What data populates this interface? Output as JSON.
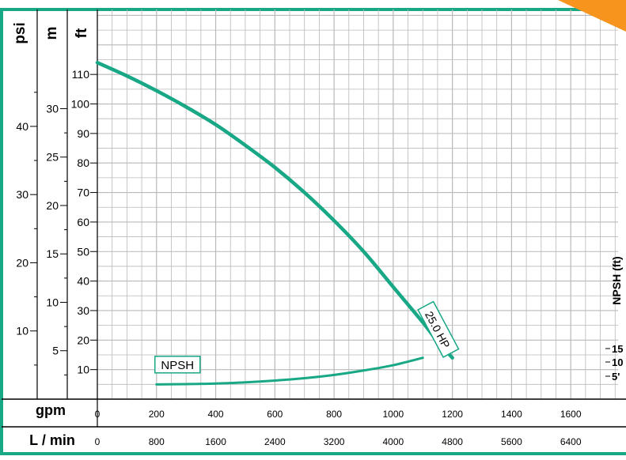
{
  "colors": {
    "frame": "#18a886",
    "grid": "#b9b9b9",
    "curve": "#18a886",
    "badge": "#f7941d",
    "text": "#000000"
  },
  "chart_data": {
    "type": "line",
    "x_units": "gpm",
    "xlim": [
      0,
      1760
    ],
    "x_ticks": [
      0,
      200,
      400,
      600,
      800,
      1000,
      1200,
      1400,
      1600
    ],
    "alt_x_axis": {
      "label": "L / min",
      "ticks": [
        "0",
        "800",
        "1600",
        "2400",
        "3200",
        "4000",
        "4800",
        "5600",
        "6400"
      ]
    },
    "x_axis_label": "gpm",
    "y_units": "ft",
    "ylim": [
      0,
      132
    ],
    "y_axis_labels": {
      "psi": "psi",
      "m": "m",
      "ft": "ft"
    },
    "ft_ticks": [
      {
        "label": "10",
        "value": 10
      },
      {
        "label": "20",
        "value": 20
      },
      {
        "label": "30",
        "value": 30
      },
      {
        "label": "40",
        "value": 40
      },
      {
        "label": "50",
        "value": 50
      },
      {
        "label": "60",
        "value": 60
      },
      {
        "label": "70",
        "value": 70
      },
      {
        "label": "80",
        "value": 80
      },
      {
        "label": "90",
        "value": 90
      },
      {
        "label": "100",
        "value": 100
      },
      {
        "label": "110",
        "value": 110
      }
    ],
    "m_ticks": [
      {
        "label": "5",
        "value": 16.4
      },
      {
        "label": "10",
        "value": 32.8
      },
      {
        "label": "15",
        "value": 49.2
      },
      {
        "label": "20",
        "value": 65.6
      },
      {
        "label": "25",
        "value": 82.0
      },
      {
        "label": "30",
        "value": 98.4
      }
    ],
    "psi_ticks": [
      {
        "label": "10",
        "value": 23.1
      },
      {
        "label": "20",
        "value": 46.2
      },
      {
        "label": "30",
        "value": 69.3
      },
      {
        "label": "40",
        "value": 92.4
      }
    ],
    "npsh_axis": {
      "label": "NPSH (ft)",
      "ticks": [
        {
          "label": "15",
          "value": 15
        },
        {
          "label": "10",
          "value": 10
        },
        {
          "label": "5'",
          "value": 5
        }
      ]
    },
    "series": [
      {
        "name": "25.0 HP",
        "x": [
          0,
          100,
          200,
          300,
          400,
          500,
          600,
          700,
          800,
          900,
          1000,
          1100,
          1150,
          1200
        ],
        "y": [
          114,
          109.5,
          104.5,
          99,
          93,
          86,
          78.5,
          70,
          60.5,
          50,
          38,
          26,
          19.5,
          14
        ]
      },
      {
        "name": "NPSH",
        "x": [
          200,
          300,
          400,
          500,
          600,
          700,
          800,
          900,
          1000,
          1100
        ],
        "y": [
          5,
          5.1,
          5.3,
          5.7,
          6.3,
          7.1,
          8.2,
          9.7,
          11.5,
          14
        ]
      }
    ],
    "grid": true
  }
}
